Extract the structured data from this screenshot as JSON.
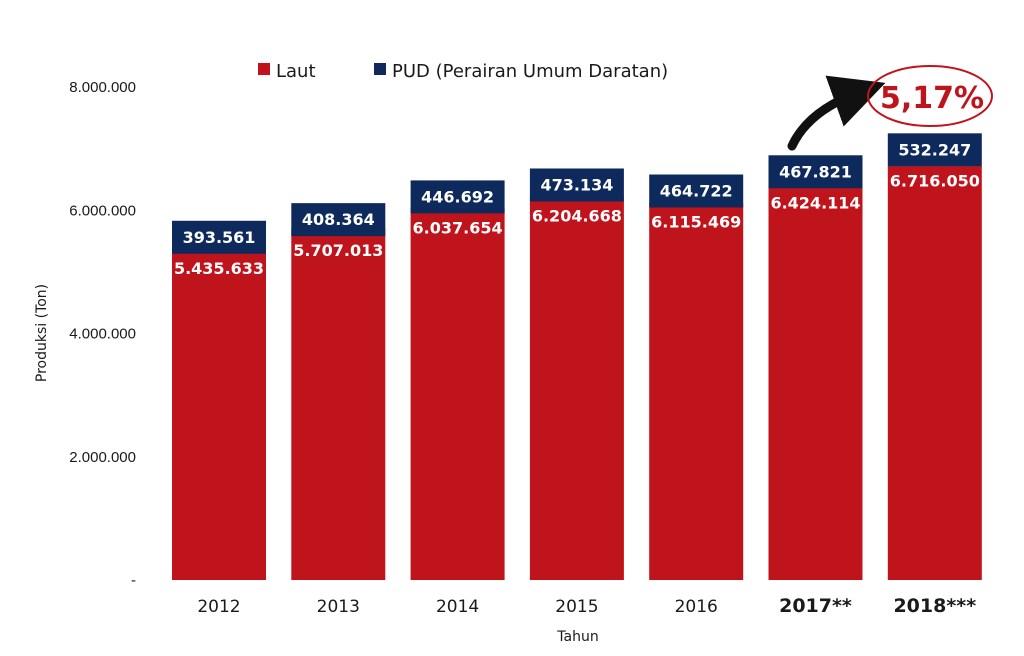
{
  "chart_data": {
    "type": "bar",
    "stacked": true,
    "categories": [
      "2012",
      "2013",
      "2014",
      "2015",
      "2016",
      "2017**",
      "2018***"
    ],
    "series": [
      {
        "name": "Laut",
        "color": "#c0141c",
        "values": [
          5435633,
          5707013,
          6037654,
          6204668,
          6115469,
          6424114,
          6716050
        ],
        "labels": [
          "5.435.633",
          "5.707.013",
          "6.037.654",
          "6.204.668",
          "6.115.469",
          "6.424.114",
          "6.716.050"
        ]
      },
      {
        "name": "PUD (Perairan Umum Daratan)",
        "color": "#0e2a5c",
        "values": [
          393561,
          408364,
          446692,
          473134,
          464722,
          467821,
          532247
        ],
        "labels": [
          "393.561",
          "408.364",
          "446.692",
          "473.134",
          "464.722",
          "467.821",
          "532.247"
        ]
      }
    ],
    "title": "",
    "xlabel": "Tahun",
    "ylabel": "Produksi (Ton)",
    "ylim": [
      0,
      8000000
    ],
    "yticks": [
      0,
      2000000,
      4000000,
      6000000,
      8000000
    ],
    "ytick_labels": [
      "-",
      "2.000.000",
      "4.000.000",
      "6.000.000",
      "8.000.000"
    ],
    "bold_categories": [
      "2017**",
      "2018***"
    ],
    "legend_position": "top",
    "grid": false,
    "annotation": {
      "text": "5,17%",
      "category": "2018***",
      "color": "#c0141c"
    }
  }
}
